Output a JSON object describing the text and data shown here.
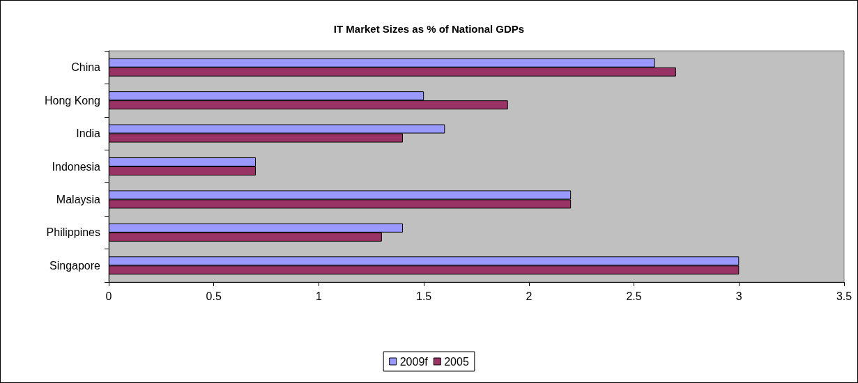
{
  "chart_data": {
    "type": "bar",
    "orientation": "horizontal",
    "title": "IT Market Sizes as % of National GDPs",
    "categories": [
      "China",
      "Hong Kong",
      "India",
      "Indonesia",
      "Malaysia",
      "Philippines",
      "Singapore"
    ],
    "series": [
      {
        "name": "2009f",
        "color": "#9999ff",
        "values": [
          2.6,
          1.5,
          1.6,
          0.7,
          2.2,
          1.4,
          3
        ]
      },
      {
        "name": "2005",
        "color": "#993366",
        "values": [
          2.7,
          1.9,
          1.4,
          0.7,
          2.2,
          1.3,
          3
        ]
      }
    ],
    "xlim": [
      0,
      3.5
    ],
    "xticks": [
      0,
      0.5,
      1,
      1.5,
      2,
      2.5,
      3,
      3.5
    ],
    "grid": false,
    "legend": "bottom"
  }
}
